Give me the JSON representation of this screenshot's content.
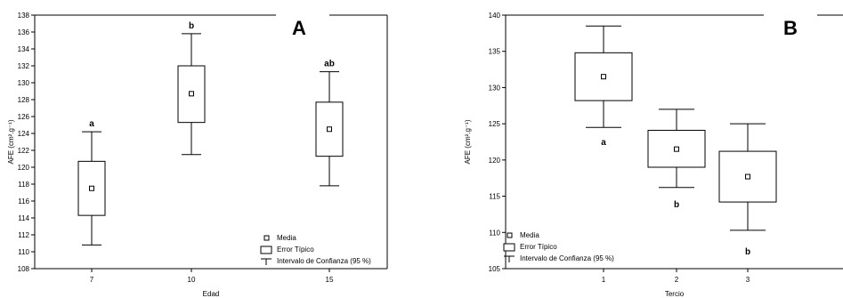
{
  "chart_data": [
    {
      "type": "box",
      "panel_letter": "A",
      "xlabel": "Edad",
      "ylabel": "AFE (cm².g⁻¹)",
      "ylim": [
        108,
        138
      ],
      "yticks": [
        108,
        110,
        112,
        114,
        116,
        118,
        120,
        122,
        124,
        126,
        128,
        130,
        132,
        134,
        136,
        138
      ],
      "categories": [
        "7",
        "10",
        "15"
      ],
      "groups": [
        {
          "category": "7",
          "mean": 117.5,
          "se_low": 114.3,
          "se_high": 120.7,
          "ci_low": 110.8,
          "ci_high": 124.2,
          "letter": "a"
        },
        {
          "category": "10",
          "mean": 128.7,
          "se_low": 125.3,
          "se_high": 132.0,
          "ci_low": 121.5,
          "ci_high": 135.8,
          "letter": "b"
        },
        {
          "category": "15",
          "mean": 124.5,
          "se_low": 121.3,
          "se_high": 127.7,
          "ci_low": 117.8,
          "ci_high": 131.3,
          "letter": "ab"
        }
      ],
      "legend": {
        "position": "bottom-right",
        "entries": [
          "Media",
          "Error Típico",
          "Intervalo de Confianza (95 %)"
        ]
      }
    },
    {
      "type": "box",
      "panel_letter": "B",
      "xlabel": "Tercio",
      "ylabel": "AFE (cm².g⁻¹)",
      "ylim": [
        105,
        140
      ],
      "yticks": [
        105,
        110,
        115,
        120,
        125,
        130,
        135,
        140
      ],
      "categories": [
        "1",
        "2",
        "3"
      ],
      "groups": [
        {
          "category": "1",
          "mean": 131.5,
          "se_low": 128.2,
          "se_high": 134.8,
          "ci_low": 124.5,
          "ci_high": 138.5,
          "letter": "a"
        },
        {
          "category": "2",
          "mean": 121.5,
          "se_low": 119.0,
          "se_high": 124.1,
          "ci_low": 116.2,
          "ci_high": 127.0,
          "letter": "b"
        },
        {
          "category": "3",
          "mean": 117.7,
          "se_low": 114.2,
          "se_high": 121.2,
          "ci_low": 110.3,
          "ci_high": 125.0,
          "letter": "b"
        }
      ],
      "legend": {
        "position": "bottom-left",
        "entries": [
          "Media",
          "Error Típico",
          "Intervalo de Confianza (95 %)"
        ]
      }
    }
  ]
}
